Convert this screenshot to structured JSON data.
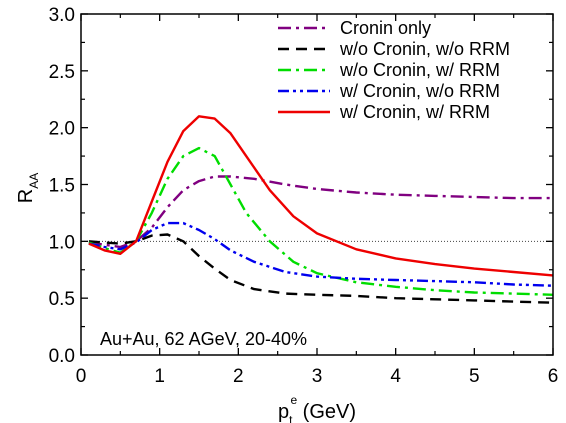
{
  "chart_data": {
    "type": "line",
    "xlim": [
      0,
      6
    ],
    "ylim": [
      0.0,
      3.0
    ],
    "x_ticks": [
      "0",
      "1",
      "2",
      "3",
      "4",
      "5",
      "6"
    ],
    "y_ticks": [
      "0.0",
      "0.5",
      "1.0",
      "1.5",
      "2.0",
      "2.5",
      "3.0"
    ],
    "xlabel": {
      "main": "p",
      "sub": "t",
      "sup": "e",
      "rest": " (GeV)"
    },
    "ylabel": {
      "main": "R",
      "sub": "AA"
    },
    "reference_line": {
      "y": 1.0,
      "style": "dotted",
      "color": "#444444"
    },
    "annotation": "Au+Au, 62 AGeV, 20-40%",
    "legend_position": "top-right",
    "grid": false,
    "series": [
      {
        "name": "Cronin only",
        "color": "#800080",
        "dash": "dashdot",
        "points": [
          [
            0.1,
            0.99
          ],
          [
            0.3,
            0.97
          ],
          [
            0.5,
            0.95
          ],
          [
            0.7,
            1.0
          ],
          [
            0.9,
            1.12
          ],
          [
            1.1,
            1.3
          ],
          [
            1.3,
            1.45
          ],
          [
            1.5,
            1.53
          ],
          [
            1.7,
            1.57
          ],
          [
            1.9,
            1.57
          ],
          [
            2.2,
            1.55
          ],
          [
            2.6,
            1.5
          ],
          [
            3.0,
            1.46
          ],
          [
            3.5,
            1.43
          ],
          [
            4.0,
            1.41
          ],
          [
            4.5,
            1.4
          ],
          [
            5.0,
            1.39
          ],
          [
            5.5,
            1.38
          ],
          [
            6.0,
            1.38
          ]
        ]
      },
      {
        "name": "w/o Cronin, w/o RRM",
        "color": "#000000",
        "dash": "dashed",
        "points": [
          [
            0.1,
            1.0
          ],
          [
            0.3,
            0.99
          ],
          [
            0.5,
            0.98
          ],
          [
            0.7,
            1.0
          ],
          [
            0.9,
            1.05
          ],
          [
            1.1,
            1.06
          ],
          [
            1.3,
            1.0
          ],
          [
            1.5,
            0.87
          ],
          [
            1.7,
            0.76
          ],
          [
            1.9,
            0.66
          ],
          [
            2.2,
            0.58
          ],
          [
            2.6,
            0.54
          ],
          [
            3.0,
            0.53
          ],
          [
            3.5,
            0.52
          ],
          [
            4.0,
            0.5
          ],
          [
            4.5,
            0.49
          ],
          [
            5.0,
            0.48
          ],
          [
            5.5,
            0.47
          ],
          [
            6.0,
            0.46
          ]
        ]
      },
      {
        "name": "w/o Cronin, w/ RRM",
        "color": "#00dd00",
        "dash": "dashdot",
        "points": [
          [
            0.1,
            0.99
          ],
          [
            0.3,
            0.94
          ],
          [
            0.5,
            0.9
          ],
          [
            0.7,
            1.0
          ],
          [
            0.9,
            1.25
          ],
          [
            1.1,
            1.55
          ],
          [
            1.3,
            1.75
          ],
          [
            1.5,
            1.82
          ],
          [
            1.7,
            1.75
          ],
          [
            1.9,
            1.5
          ],
          [
            2.1,
            1.25
          ],
          [
            2.4,
            1.0
          ],
          [
            2.7,
            0.82
          ],
          [
            3.0,
            0.72
          ],
          [
            3.5,
            0.64
          ],
          [
            4.0,
            0.6
          ],
          [
            4.5,
            0.57
          ],
          [
            5.0,
            0.55
          ],
          [
            5.5,
            0.54
          ],
          [
            6.0,
            0.53
          ]
        ]
      },
      {
        "name": "w/ Cronin, w/o RRM",
        "color": "#0000ee",
        "dash": "dashdotdot",
        "points": [
          [
            0.1,
            0.98
          ],
          [
            0.3,
            0.95
          ],
          [
            0.5,
            0.93
          ],
          [
            0.7,
            0.99
          ],
          [
            0.9,
            1.1
          ],
          [
            1.1,
            1.16
          ],
          [
            1.3,
            1.16
          ],
          [
            1.5,
            1.1
          ],
          [
            1.7,
            1.02
          ],
          [
            1.9,
            0.92
          ],
          [
            2.2,
            0.82
          ],
          [
            2.6,
            0.73
          ],
          [
            3.0,
            0.69
          ],
          [
            3.5,
            0.67
          ],
          [
            4.0,
            0.66
          ],
          [
            4.5,
            0.65
          ],
          [
            5.0,
            0.64
          ],
          [
            5.5,
            0.62
          ],
          [
            6.0,
            0.61
          ]
        ]
      },
      {
        "name": "w/ Cronin, w/ RRM",
        "color": "#ee0000",
        "dash": "solid",
        "points": [
          [
            0.1,
            0.98
          ],
          [
            0.3,
            0.92
          ],
          [
            0.5,
            0.89
          ],
          [
            0.7,
            1.0
          ],
          [
            0.9,
            1.35
          ],
          [
            1.1,
            1.7
          ],
          [
            1.3,
            1.97
          ],
          [
            1.5,
            2.1
          ],
          [
            1.7,
            2.08
          ],
          [
            1.9,
            1.95
          ],
          [
            2.1,
            1.75
          ],
          [
            2.4,
            1.45
          ],
          [
            2.7,
            1.22
          ],
          [
            3.0,
            1.07
          ],
          [
            3.5,
            0.93
          ],
          [
            4.0,
            0.85
          ],
          [
            4.5,
            0.8
          ],
          [
            5.0,
            0.76
          ],
          [
            5.5,
            0.73
          ],
          [
            6.0,
            0.7
          ]
        ]
      }
    ]
  }
}
